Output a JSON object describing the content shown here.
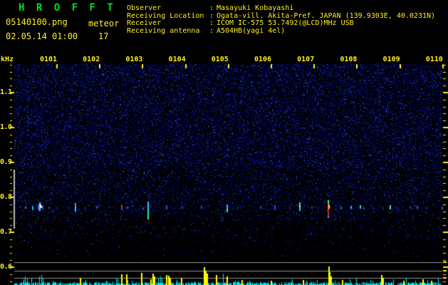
{
  "header": {
    "app_title": "H R O F F T",
    "filename": "05140100.png",
    "mode": "meteor",
    "datetime": "02.05.14 01:00",
    "echo_count": "17",
    "info": [
      {
        "label": "Observer",
        "colon": ":",
        "value": "Masayuki Kobayashi"
      },
      {
        "label": "Receiving Location",
        "colon": ":",
        "value": "Ogata-vill. Akita-Pref. JAPAN (139.9303E, 40.0231N)"
      },
      {
        "label": "Receiver",
        "colon": ":",
        "value": "ICOM IC-575 53.7492(@LCD)MHz USB"
      },
      {
        "label": "Receiving antenna",
        "colon": ":",
        "value": "A504HB(yagi 4el)"
      }
    ]
  },
  "chart_data": {
    "type": "heatmap",
    "description": "HROFFT radio meteor echo spectrogram, 10 minute window",
    "x_axis": {
      "labels": [
        "0101",
        "0102",
        "0103",
        "0104",
        "0105",
        "0106",
        "0107",
        "0108",
        "0109",
        "0110"
      ],
      "minutes_per_division": 1
    },
    "y_axis": {
      "unit": "kHz",
      "tick_labels": [
        "1.1",
        "1.0",
        "0.9",
        "0.8",
        "0.7",
        "0.6"
      ],
      "tick_values": [
        1.1,
        1.0,
        0.9,
        0.8,
        0.7,
        0.6
      ],
      "range": [
        0.56,
        1.18
      ],
      "minor_step": 0.02
    },
    "echo_count_range_khz": [
      0.71,
      0.88
    ],
    "level_lines_y": [
      368,
      380,
      390
    ],
    "meteor_echoes": [
      [
        35,
        290,
        3,
        "#0099ee"
      ],
      [
        45,
        289,
        6,
        "#00bbff"
      ],
      [
        53,
        287,
        7,
        "#2266ee"
      ],
      [
        55,
        284,
        12,
        "#55ccff"
      ],
      [
        56,
        287,
        4,
        "#ffffff"
      ],
      [
        57,
        289,
        3,
        "#ffee66"
      ],
      [
        59,
        288,
        6,
        "#2255dd"
      ],
      [
        68,
        290,
        3,
        "#2244bb"
      ],
      [
        78,
        291,
        2,
        "#223399"
      ],
      [
        96,
        291,
        2,
        "#223399"
      ],
      [
        105,
        285,
        12,
        "#33bbff"
      ],
      [
        105,
        287,
        2,
        "#ff5544"
      ],
      [
        118,
        291,
        2,
        "#223399"
      ],
      [
        135,
        289,
        4,
        "#2250c8"
      ],
      [
        170,
        288,
        3,
        "#ff3333"
      ],
      [
        170,
        291,
        4,
        "#2255cc"
      ],
      [
        178,
        290,
        3,
        "#2255cc"
      ],
      [
        200,
        291,
        3,
        "#2255cc"
      ],
      [
        207,
        283,
        14,
        "#33ccff"
      ],
      [
        207,
        297,
        11,
        "#33ee77"
      ],
      [
        233,
        288,
        6,
        "#2255dd"
      ],
      [
        255,
        290,
        3,
        "#2244bb"
      ],
      [
        282,
        289,
        4,
        "#2255cc"
      ],
      [
        318,
        287,
        9,
        "#33bbff"
      ],
      [
        318,
        294,
        3,
        "#66ffff"
      ],
      [
        333,
        291,
        2,
        "#223399"
      ],
      [
        365,
        289,
        4,
        "#2255cc"
      ],
      [
        385,
        288,
        6,
        "#2255cc"
      ],
      [
        406,
        291,
        2,
        "#223399"
      ],
      [
        420,
        284,
        12,
        "#33ccff"
      ],
      [
        420,
        288,
        3,
        "#88ffff"
      ],
      [
        437,
        290,
        3,
        "#2244bb"
      ],
      [
        460,
        281,
        5,
        "#33ff88"
      ],
      [
        460,
        286,
        9,
        "#ff3322"
      ],
      [
        461,
        287,
        6,
        "#ffcc33"
      ],
      [
        460,
        295,
        8,
        "#cc2222"
      ],
      [
        460,
        303,
        3,
        "#3399ff"
      ],
      [
        478,
        290,
        4,
        "#2255cc"
      ],
      [
        492,
        289,
        4,
        "#33bbff"
      ],
      [
        505,
        288,
        5,
        "#33ccff"
      ],
      [
        510,
        291,
        3,
        "#2255cc"
      ],
      [
        524,
        291,
        2,
        "#223399"
      ],
      [
        547,
        288,
        6,
        "#44ddbb"
      ],
      [
        558,
        291,
        2,
        "#223399"
      ],
      [
        575,
        290,
        3,
        "#2244bb"
      ],
      [
        585,
        289,
        4,
        "#2266dd"
      ],
      [
        598,
        291,
        2,
        "#223399"
      ],
      [
        620,
        290,
        4,
        "#2255cc"
      ]
    ],
    "long_echo_spikes_yellow": [
      [
        112,
        10
      ],
      [
        170,
        15
      ],
      [
        177,
        15
      ],
      [
        198,
        17
      ],
      [
        211,
        8
      ],
      [
        214,
        16
      ],
      [
        216,
        12
      ],
      [
        233,
        14
      ],
      [
        236,
        13
      ],
      [
        238,
        10
      ],
      [
        254,
        10
      ],
      [
        286,
        25
      ],
      [
        288,
        20
      ],
      [
        290,
        16
      ],
      [
        303,
        14
      ],
      [
        318,
        12
      ],
      [
        339,
        7
      ],
      [
        380,
        6
      ],
      [
        425,
        7
      ],
      [
        461,
        26
      ],
      [
        462,
        18
      ],
      [
        464,
        12
      ],
      [
        480,
        7
      ],
      [
        535,
        14
      ],
      [
        537,
        10
      ],
      [
        566,
        6
      ],
      [
        593,
        8
      ],
      [
        605,
        6
      ]
    ],
    "noise_spikes_cyan": [
      [
        33,
        8
      ],
      [
        35,
        12
      ],
      [
        38,
        9
      ],
      [
        44,
        10
      ],
      [
        55,
        12
      ],
      [
        58,
        14
      ],
      [
        60,
        9
      ],
      [
        74,
        6
      ],
      [
        120,
        7
      ],
      [
        163,
        10
      ],
      [
        165,
        8
      ],
      [
        185,
        6
      ],
      [
        222,
        10
      ],
      [
        225,
        12
      ],
      [
        227,
        9
      ],
      [
        248,
        7
      ],
      [
        313,
        16
      ],
      [
        330,
        6
      ],
      [
        350,
        6
      ],
      [
        410,
        8
      ],
      [
        430,
        6
      ],
      [
        445,
        7
      ],
      [
        470,
        6
      ],
      [
        500,
        9
      ],
      [
        520,
        7
      ],
      [
        552,
        8
      ],
      [
        570,
        10
      ],
      [
        583,
        6
      ],
      [
        600,
        7
      ],
      [
        615,
        9
      ]
    ]
  },
  "colors": {
    "label_yellow": "#ffee22",
    "title_green": "#00dd22",
    "noise_cyan": "#00e8e8",
    "grid_gray": "#909090",
    "range_bar": "#b8b8b8",
    "background": "#000000"
  }
}
